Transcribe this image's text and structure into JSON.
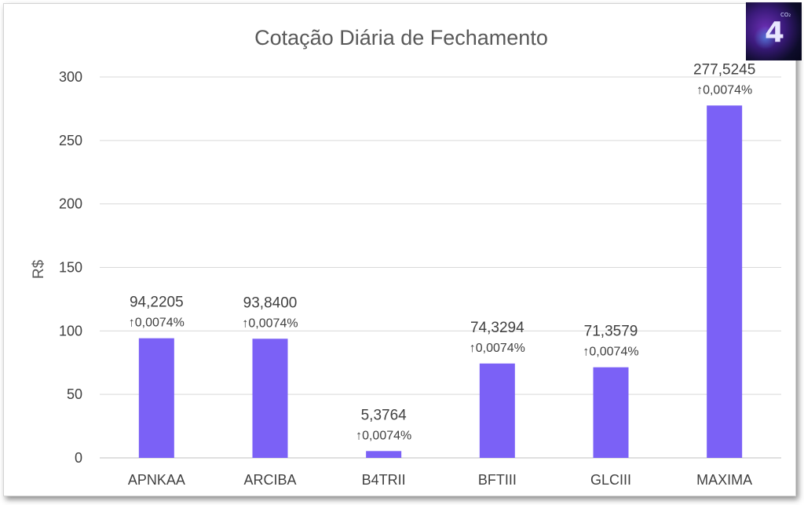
{
  "logo": {
    "mark": "4",
    "sub": "CO₂"
  },
  "chart_data": {
    "type": "bar",
    "title": "Cotação Diária de Fechamento",
    "ylabel": "R$",
    "xlabel": "",
    "ylim": [
      0,
      300
    ],
    "yticks": [
      0,
      50,
      100,
      150,
      200,
      250,
      300
    ],
    "ytick_labels": [
      "0",
      "50",
      "100",
      "150",
      "200",
      "250",
      "300"
    ],
    "grid": true,
    "bar_color": "#7b61f6",
    "categories": [
      "APNKAA",
      "ARCIBA",
      "B4TRII",
      "BFTIII",
      "GLCIII",
      "MAXIMA"
    ],
    "values": [
      94.2205,
      93.84,
      5.3764,
      74.3294,
      71.3579,
      277.5245
    ],
    "value_labels": [
      "94,2205",
      "93,8400",
      "5,3764",
      "74,3294",
      "71,3579",
      "277,5245"
    ],
    "change_labels": [
      "↑0,0074%",
      "↑0,0074%",
      "↑0,0074%",
      "↑0,0074%",
      "↑0,0074%",
      "↑0,0074%"
    ]
  }
}
